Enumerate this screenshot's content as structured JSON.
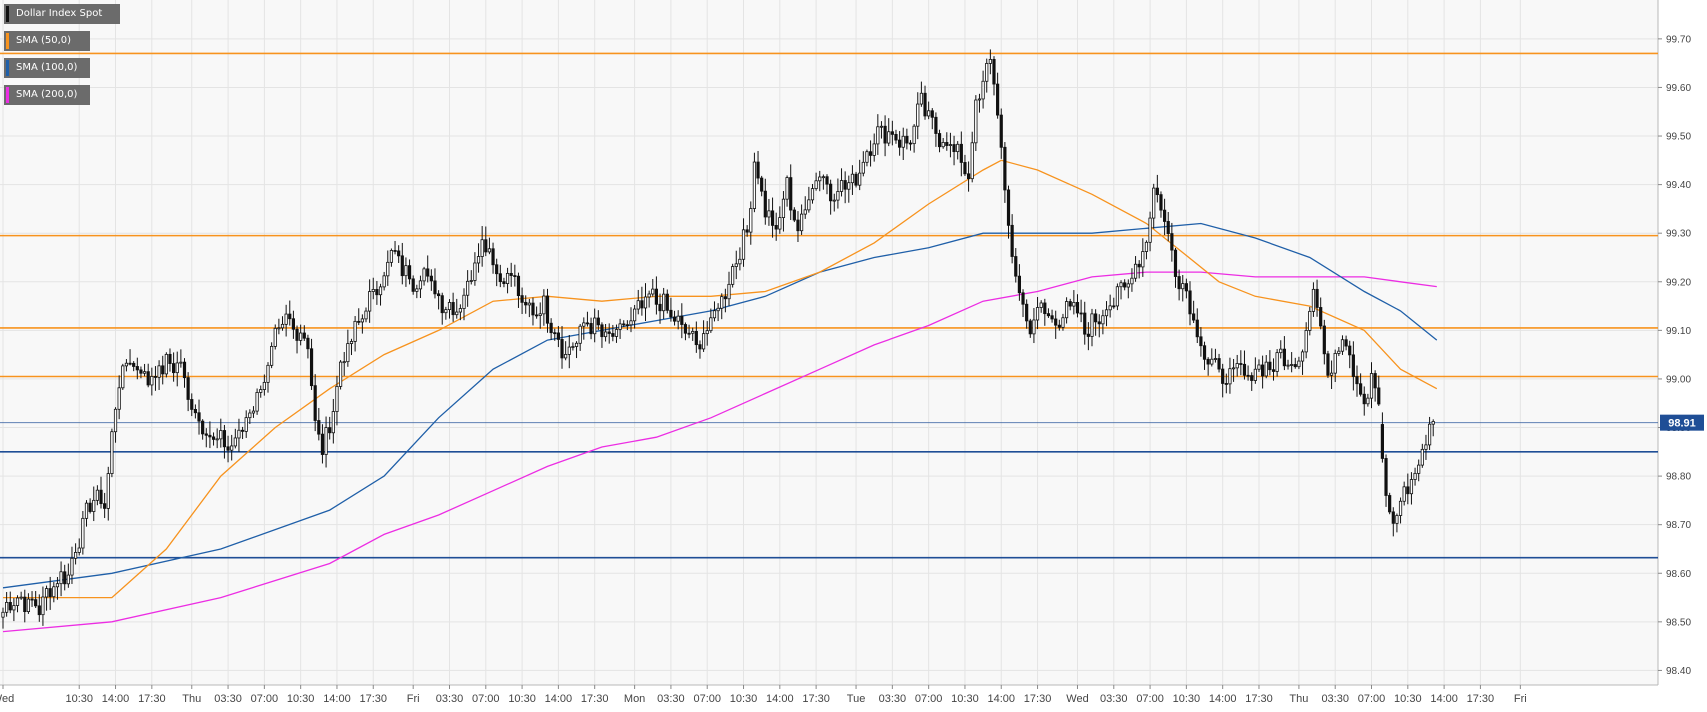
{
  "chart_data": {
    "type": "candlestick",
    "instrument": "Dollar Index Spot",
    "ylim": [
      98.37,
      99.78
    ],
    "y_ticks": [
      "99.70",
      "99.60",
      "99.50",
      "99.40",
      "99.30",
      "99.20",
      "99.10",
      "99.00",
      "98.90",
      "98.80",
      "98.70",
      "98.60",
      "98.50",
      "98.40"
    ],
    "x_ticks": [
      {
        "label": "Wed",
        "i": 0
      },
      {
        "label": "10:30",
        "i": 21
      },
      {
        "label": "14:00",
        "i": 31
      },
      {
        "label": "17:30",
        "i": 41
      },
      {
        "label": "Thu",
        "i": 52
      },
      {
        "label": "03:30",
        "i": 62
      },
      {
        "label": "07:00",
        "i": 72
      },
      {
        "label": "10:30",
        "i": 82
      },
      {
        "label": "14:00",
        "i": 92
      },
      {
        "label": "17:30",
        "i": 102
      },
      {
        "label": "Fri",
        "i": 113
      },
      {
        "label": "03:30",
        "i": 123
      },
      {
        "label": "07:00",
        "i": 133
      },
      {
        "label": "10:30",
        "i": 143
      },
      {
        "label": "14:00",
        "i": 153
      },
      {
        "label": "17:30",
        "i": 163
      },
      {
        "label": "Mon",
        "i": 174
      },
      {
        "label": "03:30",
        "i": 184
      },
      {
        "label": "07:00",
        "i": 194
      },
      {
        "label": "10:30",
        "i": 204
      },
      {
        "label": "14:00",
        "i": 214
      },
      {
        "label": "17:30",
        "i": 224
      },
      {
        "label": "Tue",
        "i": 235
      },
      {
        "label": "03:30",
        "i": 245
      },
      {
        "label": "07:00",
        "i": 255
      },
      {
        "label": "10:30",
        "i": 265
      },
      {
        "label": "14:00",
        "i": 275
      },
      {
        "label": "17:30",
        "i": 285
      },
      {
        "label": "Wed",
        "i": 296
      },
      {
        "label": "03:30",
        "i": 306
      },
      {
        "label": "07:00",
        "i": 316
      },
      {
        "label": "10:30",
        "i": 326
      },
      {
        "label": "14:00",
        "i": 336
      },
      {
        "label": "17:30",
        "i": 346
      },
      {
        "label": "Thu",
        "i": 357
      },
      {
        "label": "03:30",
        "i": 367
      },
      {
        "label": "07:00",
        "i": 377
      },
      {
        "label": "10:30",
        "i": 387
      },
      {
        "label": "14:00",
        "i": 397
      },
      {
        "label": "17:30",
        "i": 407
      },
      {
        "label": "Fri",
        "i": 418
      }
    ],
    "anchors": [
      [
        0,
        98.52
      ],
      [
        3,
        98.55
      ],
      [
        10,
        98.53
      ],
      [
        14,
        98.58
      ],
      [
        18,
        98.6
      ],
      [
        22,
        98.7
      ],
      [
        25,
        98.76
      ],
      [
        28,
        98.74
      ],
      [
        30,
        98.88
      ],
      [
        32,
        99.0
      ],
      [
        35,
        99.04
      ],
      [
        40,
        99.0
      ],
      [
        45,
        99.03
      ],
      [
        49,
        99.03
      ],
      [
        51,
        98.96
      ],
      [
        54,
        98.92
      ],
      [
        57,
        98.88
      ],
      [
        60,
        98.87
      ],
      [
        63,
        98.86
      ],
      [
        66,
        98.9
      ],
      [
        69,
        98.95
      ],
      [
        72,
        99.0
      ],
      [
        75,
        99.08
      ],
      [
        78,
        99.12
      ],
      [
        81,
        99.1
      ],
      [
        84,
        99.08
      ],
      [
        86,
        98.9
      ],
      [
        88,
        98.86
      ],
      [
        90,
        98.9
      ],
      [
        93,
        99.03
      ],
      [
        96,
        99.08
      ],
      [
        100,
        99.15
      ],
      [
        104,
        99.2
      ],
      [
        107,
        99.26
      ],
      [
        110,
        99.23
      ],
      [
        113,
        99.2
      ],
      [
        116,
        99.22
      ],
      [
        119,
        99.18
      ],
      [
        122,
        99.15
      ],
      [
        126,
        99.15
      ],
      [
        129,
        99.22
      ],
      [
        132,
        99.29
      ],
      [
        135,
        99.25
      ],
      [
        137,
        99.2
      ],
      [
        140,
        99.22
      ],
      [
        143,
        99.15
      ],
      [
        146,
        99.14
      ],
      [
        149,
        99.15
      ],
      [
        152,
        99.1
      ],
      [
        155,
        99.05
      ],
      [
        158,
        99.08
      ],
      [
        161,
        99.12
      ],
      [
        164,
        99.1
      ],
      [
        167,
        99.08
      ],
      [
        170,
        99.1
      ],
      [
        173,
        99.12
      ],
      [
        176,
        99.15
      ],
      [
        179,
        99.17
      ],
      [
        182,
        99.15
      ],
      [
        185,
        99.12
      ],
      [
        188,
        99.1
      ],
      [
        191,
        99.07
      ],
      [
        194,
        99.1
      ],
      [
        197,
        99.15
      ],
      [
        200,
        99.2
      ],
      [
        202,
        99.25
      ],
      [
        205,
        99.3
      ],
      [
        207,
        99.45
      ],
      [
        210,
        99.35
      ],
      [
        213,
        99.3
      ],
      [
        216,
        99.4
      ],
      [
        219,
        99.3
      ],
      [
        222,
        99.38
      ],
      [
        225,
        99.43
      ],
      [
        228,
        99.38
      ],
      [
        231,
        99.4
      ],
      [
        234,
        99.4
      ],
      [
        237,
        99.45
      ],
      [
        240,
        99.5
      ],
      [
        243,
        99.51
      ],
      [
        246,
        99.5
      ],
      [
        249,
        99.48
      ],
      [
        251,
        99.52
      ],
      [
        253,
        99.57
      ],
      [
        256,
        99.52
      ],
      [
        258,
        99.5
      ],
      [
        261,
        99.48
      ],
      [
        264,
        99.45
      ],
      [
        266,
        99.42
      ],
      [
        268,
        99.56
      ],
      [
        270,
        99.6
      ],
      [
        272,
        99.67
      ],
      [
        274,
        99.55
      ],
      [
        276,
        99.38
      ],
      [
        278,
        99.25
      ],
      [
        281,
        99.15
      ],
      [
        283,
        99.1
      ],
      [
        286,
        99.15
      ],
      [
        289,
        99.12
      ],
      [
        292,
        99.13
      ],
      [
        295,
        99.15
      ],
      [
        298,
        99.1
      ],
      [
        301,
        99.12
      ],
      [
        304,
        99.15
      ],
      [
        307,
        99.17
      ],
      [
        310,
        99.2
      ],
      [
        313,
        99.25
      ],
      [
        315,
        99.28
      ],
      [
        317,
        99.4
      ],
      [
        319,
        99.35
      ],
      [
        321,
        99.3
      ],
      [
        323,
        99.22
      ],
      [
        325,
        99.2
      ],
      [
        327,
        99.15
      ],
      [
        329,
        99.1
      ],
      [
        331,
        99.05
      ],
      [
        334,
        99.02
      ],
      [
        337,
        99.0
      ],
      [
        340,
        99.02
      ],
      [
        343,
        99.0
      ],
      [
        346,
        99.03
      ],
      [
        349,
        99.02
      ],
      [
        352,
        99.05
      ],
      [
        355,
        99.02
      ],
      [
        357,
        99.05
      ],
      [
        359,
        99.1
      ],
      [
        361,
        99.2
      ],
      [
        363,
        99.1
      ],
      [
        365,
        99.0
      ],
      [
        367,
        99.05
      ],
      [
        369,
        99.1
      ],
      [
        371,
        99.05
      ],
      [
        373,
        99.0
      ],
      [
        375,
        98.95
      ],
      [
        377,
        99.0
      ],
      [
        379,
        98.95
      ],
      [
        380,
        98.83
      ],
      [
        381,
        98.75
      ],
      [
        383,
        98.7
      ],
      [
        385,
        98.75
      ],
      [
        387,
        98.78
      ],
      [
        389,
        98.8
      ],
      [
        391,
        98.85
      ],
      [
        393,
        98.9
      ],
      [
        394,
        98.92
      ]
    ],
    "gap_after": 379,
    "sma_50": [
      [
        0,
        98.55
      ],
      [
        30,
        98.55
      ],
      [
        45,
        98.65
      ],
      [
        60,
        98.8
      ],
      [
        75,
        98.9
      ],
      [
        90,
        98.98
      ],
      [
        105,
        99.05
      ],
      [
        120,
        99.1
      ],
      [
        135,
        99.16
      ],
      [
        150,
        99.17
      ],
      [
        165,
        99.16
      ],
      [
        180,
        99.17
      ],
      [
        195,
        99.17
      ],
      [
        210,
        99.18
      ],
      [
        225,
        99.22
      ],
      [
        240,
        99.28
      ],
      [
        255,
        99.36
      ],
      [
        270,
        99.43
      ],
      [
        275,
        99.45
      ],
      [
        285,
        99.43
      ],
      [
        300,
        99.38
      ],
      [
        315,
        99.32
      ],
      [
        325,
        99.26
      ],
      [
        335,
        99.2
      ],
      [
        345,
        99.17
      ],
      [
        360,
        99.15
      ],
      [
        375,
        99.1
      ],
      [
        385,
        99.02
      ],
      [
        395,
        98.98
      ]
    ],
    "sma_100": [
      [
        0,
        98.57
      ],
      [
        30,
        98.6
      ],
      [
        60,
        98.65
      ],
      [
        90,
        98.73
      ],
      [
        105,
        98.8
      ],
      [
        120,
        98.92
      ],
      [
        135,
        99.02
      ],
      [
        150,
        99.08
      ],
      [
        165,
        99.1
      ],
      [
        180,
        99.12
      ],
      [
        195,
        99.14
      ],
      [
        210,
        99.17
      ],
      [
        225,
        99.22
      ],
      [
        240,
        99.25
      ],
      [
        255,
        99.27
      ],
      [
        270,
        99.3
      ],
      [
        285,
        99.3
      ],
      [
        300,
        99.3
      ],
      [
        315,
        99.31
      ],
      [
        330,
        99.32
      ],
      [
        345,
        99.29
      ],
      [
        360,
        99.25
      ],
      [
        375,
        99.18
      ],
      [
        385,
        99.14
      ],
      [
        395,
        99.08
      ]
    ],
    "sma_200": [
      [
        0,
        98.48
      ],
      [
        30,
        98.5
      ],
      [
        60,
        98.55
      ],
      [
        90,
        98.62
      ],
      [
        105,
        98.68
      ],
      [
        120,
        98.72
      ],
      [
        135,
        98.77
      ],
      [
        150,
        98.82
      ],
      [
        165,
        98.86
      ],
      [
        180,
        98.88
      ],
      [
        195,
        98.92
      ],
      [
        210,
        98.97
      ],
      [
        225,
        99.02
      ],
      [
        240,
        99.07
      ],
      [
        255,
        99.11
      ],
      [
        270,
        99.16
      ],
      [
        285,
        99.18
      ],
      [
        300,
        99.21
      ],
      [
        315,
        99.22
      ],
      [
        330,
        99.22
      ],
      [
        345,
        99.21
      ],
      [
        360,
        99.21
      ],
      [
        375,
        99.21
      ],
      [
        385,
        99.2
      ],
      [
        395,
        99.19
      ]
    ],
    "horizontal_lines": [
      {
        "value": 99.67,
        "color": "#f7931e"
      },
      {
        "value": 99.295,
        "color": "#f7931e"
      },
      {
        "value": 99.105,
        "color": "#f7931e"
      },
      {
        "value": 99.005,
        "color": "#f7931e"
      },
      {
        "value": 98.85,
        "color": "#1f4e96"
      },
      {
        "value": 98.632,
        "color": "#1f4e96"
      }
    ],
    "current_price": {
      "value": 98.91,
      "label": "98.91"
    },
    "legend": [
      {
        "label": "Dollar Index Spot",
        "color": "#111111"
      },
      {
        "label": "SMA (50,0)",
        "color": "#f7931e"
      },
      {
        "label": "SMA (100,0)",
        "color": "#1f5fa8"
      },
      {
        "label": "SMA (200,0)",
        "color": "#ec2de3"
      }
    ],
    "colors": {
      "background": "#ffffff",
      "plot": "#f8f8f8",
      "grid": "#e4e4e4",
      "sma_50": "#f7931e",
      "sma_100": "#1f5fa8",
      "sma_200": "#ec2de3",
      "price_line": "#1f4e96",
      "tag_bg": "#1f4e96"
    }
  }
}
